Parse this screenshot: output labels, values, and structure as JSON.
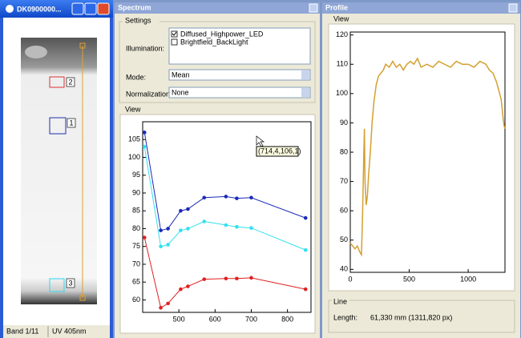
{
  "image_window": {
    "title": "DK0900000...",
    "markers": [
      "2",
      "1",
      "3"
    ],
    "status": [
      "Band 1/11",
      "UV 405nm"
    ]
  },
  "spectrum_window": {
    "title": "Spectrum",
    "settings_group": "Settings",
    "illumination_label": "Illumination:",
    "illumination_options": [
      {
        "label": "Diffused_Highpower_LED",
        "checked": true
      },
      {
        "label": "Brightfield_BackLight",
        "checked": false
      }
    ],
    "mode_label": "Mode:",
    "mode": "Mean",
    "normalization_label": "Normalization:",
    "normalization": "None",
    "view_group": "View",
    "tooltip": "(714,4,106,1)"
  },
  "profile_window": {
    "title": "Profile",
    "view_group": "View",
    "line_group": "Line",
    "length_label": "Length:",
    "length": "61,330 mm (1311,820 px)"
  },
  "chart_data": [
    {
      "type": "line",
      "markers": true,
      "x": [
        405,
        450,
        470,
        505,
        525,
        570,
        630,
        660,
        700,
        850
      ],
      "series": [
        {
          "color": "#1a2ab8",
          "values": [
            107,
            79.5,
            80,
            85,
            85.5,
            88.7,
            89,
            88.5,
            88.7,
            83
          ]
        },
        {
          "color": "#33e0f0",
          "values": [
            103,
            75,
            75.5,
            79.5,
            80,
            82,
            81,
            80.5,
            80.2,
            74
          ]
        },
        {
          "color": "#e02020",
          "values": [
            77.5,
            57.8,
            59,
            63,
            63.8,
            65.8,
            66,
            66,
            66.2,
            63
          ]
        }
      ],
      "xlim": [
        400,
        865
      ],
      "ylim": [
        56.5,
        110
      ],
      "xticks": [
        500,
        600,
        700,
        800
      ],
      "yticks": [
        60,
        65,
        70,
        75,
        80,
        85,
        90,
        95,
        100,
        105
      ]
    },
    {
      "type": "line",
      "markers": false,
      "x": [
        0,
        20,
        40,
        60,
        80,
        95,
        105,
        115,
        120,
        125,
        135,
        145,
        155,
        170,
        185,
        200,
        220,
        240,
        260,
        280,
        300,
        330,
        360,
        390,
        420,
        450,
        480,
        510,
        540,
        570,
        600,
        650,
        700,
        750,
        800,
        850,
        900,
        950,
        1000,
        1050,
        1100,
        1150,
        1180,
        1210,
        1240,
        1260,
        1280,
        1295,
        1305,
        1311
      ],
      "series": [
        {
          "color": "#d4a030",
          "values": [
            49,
            48,
            47,
            48,
            46,
            45,
            60,
            80,
            88,
            70,
            62,
            65,
            72,
            80,
            90,
            97,
            103,
            106,
            107,
            108,
            110,
            109,
            111,
            109,
            110,
            108,
            110,
            111,
            110,
            112,
            109,
            110,
            109,
            111,
            110,
            109,
            111,
            110,
            110,
            109,
            111,
            110,
            108,
            107,
            104,
            101,
            98,
            92,
            89,
            88
          ]
        }
      ],
      "xlim": [
        0,
        1312
      ],
      "ylim": [
        39,
        121
      ],
      "xticks": [
        0,
        500,
        1000
      ],
      "yticks": [
        40,
        50,
        60,
        70,
        80,
        90,
        100,
        110,
        120
      ]
    }
  ]
}
